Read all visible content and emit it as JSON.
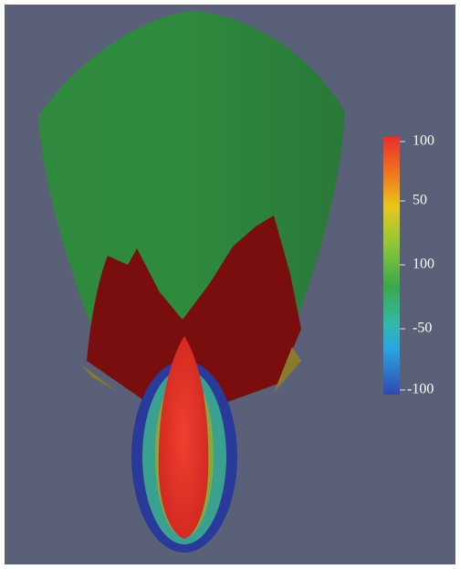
{
  "colorbar": {
    "labels": [
      "100",
      "50",
      "100",
      "-50",
      "-100"
    ]
  }
}
